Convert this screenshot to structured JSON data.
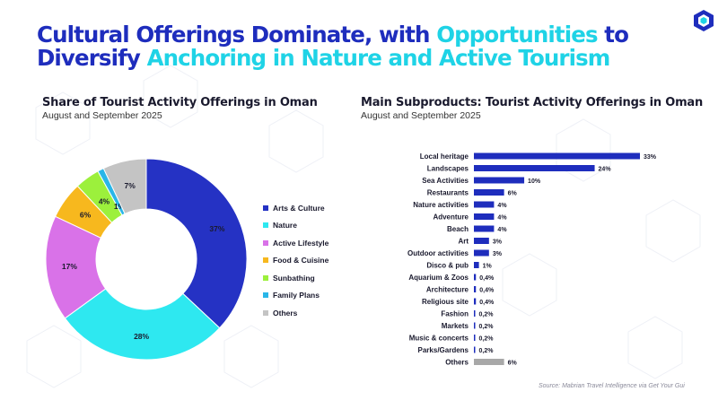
{
  "title": {
    "line1_part1": "Cultural Offerings Dominate, with",
    "line1_highlight": "Opportunities",
    "line1_part2": "to",
    "line2_part1": "Diversify",
    "line2_highlight": "Anchoring in Nature and Active Tourism"
  },
  "colors": {
    "navy": "#1e2dbd",
    "cyan": "#1fd3e6",
    "bar_gray": "#a8a8a8"
  },
  "source": "Source: Mabrian Travel Intelligence via Get Your Gui",
  "chart_data": [
    {
      "type": "pie",
      "title": "Share of Tourist Activity Offerings in Oman",
      "subtitle": "August and September 2025",
      "categories": [
        "Arts & Culture",
        "Nature",
        "Active Lifestyle",
        "Food & Cuisine",
        "Sunbathing",
        "Family Plans",
        "Others"
      ],
      "values": [
        37,
        28,
        17,
        6,
        4,
        1,
        7
      ],
      "labels": [
        "37%",
        "28%",
        "17%",
        "6%",
        "4%",
        "1%",
        "7%"
      ],
      "colors": [
        "#2532c4",
        "#2ee8f0",
        "#d972e8",
        "#f7b81e",
        "#9cf03c",
        "#29b6e8",
        "#c4c4c4"
      ],
      "legend": "right"
    },
    {
      "type": "bar",
      "orientation": "horizontal",
      "title": "Main Subproducts: Tourist Activity Offerings in Oman",
      "subtitle": "August and September 2025",
      "categories": [
        "Local heritage",
        "Landscapes",
        "Sea Activities",
        "Restaurants",
        "Nature activities",
        "Adventure",
        "Beach",
        "Art",
        "Outdoor activities",
        "Disco & pub",
        "Aquarium & Zoos",
        "Architecture",
        "Religious site",
        "Fashion",
        "Markets",
        "Music & concerts",
        "Parks/Gardens",
        "Others"
      ],
      "values": [
        33,
        24,
        10,
        6,
        4,
        4,
        4,
        3,
        3,
        1,
        0.4,
        0.4,
        0.4,
        0.2,
        0.2,
        0.2,
        0.2,
        6
      ],
      "labels": [
        "33%",
        "24%",
        "10%",
        "6%",
        "4%",
        "4%",
        "4%",
        "3%",
        "3%",
        "1%",
        "0,4%",
        "0,4%",
        "0,4%",
        "0,2%",
        "0,2%",
        "0,2%",
        "0,2%",
        "6%"
      ],
      "bar_colors": [
        "#1e2dbd",
        "#1e2dbd",
        "#1e2dbd",
        "#1e2dbd",
        "#1e2dbd",
        "#1e2dbd",
        "#1e2dbd",
        "#1e2dbd",
        "#1e2dbd",
        "#1e2dbd",
        "#1e2dbd",
        "#1e2dbd",
        "#1e2dbd",
        "#1e2dbd",
        "#1e2dbd",
        "#1e2dbd",
        "#1e2dbd",
        "#a8a8a8"
      ],
      "xlim": [
        0,
        33
      ]
    }
  ]
}
